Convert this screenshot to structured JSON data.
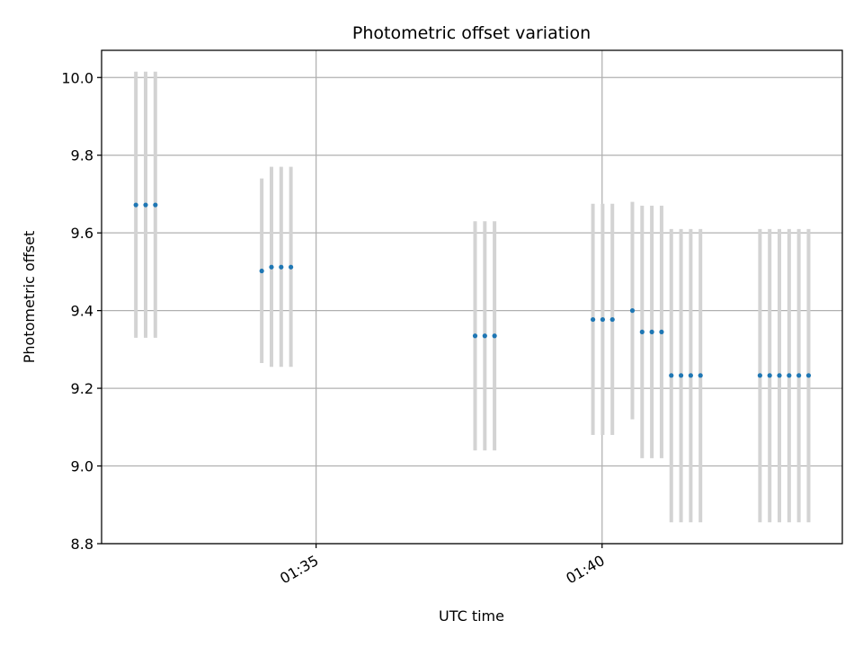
{
  "chart_data": {
    "type": "scatter",
    "title": "Photometric offset variation",
    "xlabel": "UTC time",
    "ylabel": "Photometric offset",
    "x_unit": "minutes after 01:00 UTC",
    "xlim": [
      31.25,
      44.2
    ],
    "ylim": [
      8.8,
      10.07
    ],
    "grid": true,
    "x_ticks": [
      {
        "value": 35,
        "label": "01:35"
      },
      {
        "value": 40,
        "label": "01:40"
      }
    ],
    "y_ticks": [
      {
        "value": 8.8,
        "label": "8.8"
      },
      {
        "value": 9.0,
        "label": "9.0"
      },
      {
        "value": 9.2,
        "label": "9.2"
      },
      {
        "value": 9.4,
        "label": "9.4"
      },
      {
        "value": 9.6,
        "label": "9.6"
      },
      {
        "value": 9.8,
        "label": "9.8"
      },
      {
        "value": 10.0,
        "label": "10.0"
      }
    ],
    "marker_color": "#1f77b4",
    "errorbar_color": "#d3d3d3",
    "points": [
      {
        "x": 31.85,
        "y": 9.672,
        "low": 9.33,
        "high": 10.015
      },
      {
        "x": 32.02,
        "y": 9.672,
        "low": 9.33,
        "high": 10.015
      },
      {
        "x": 32.19,
        "y": 9.672,
        "low": 9.33,
        "high": 10.015
      },
      {
        "x": 34.05,
        "y": 9.502,
        "low": 9.265,
        "high": 9.74
      },
      {
        "x": 34.22,
        "y": 9.512,
        "low": 9.255,
        "high": 9.77
      },
      {
        "x": 34.39,
        "y": 9.512,
        "low": 9.255,
        "high": 9.77
      },
      {
        "x": 34.56,
        "y": 9.512,
        "low": 9.255,
        "high": 9.77
      },
      {
        "x": 37.78,
        "y": 9.335,
        "low": 9.04,
        "high": 9.63
      },
      {
        "x": 37.95,
        "y": 9.335,
        "low": 9.04,
        "high": 9.63
      },
      {
        "x": 38.12,
        "y": 9.335,
        "low": 9.04,
        "high": 9.63
      },
      {
        "x": 39.84,
        "y": 9.377,
        "low": 9.08,
        "high": 9.675
      },
      {
        "x": 40.01,
        "y": 9.377,
        "low": 9.08,
        "high": 9.675
      },
      {
        "x": 40.18,
        "y": 9.377,
        "low": 9.08,
        "high": 9.675
      },
      {
        "x": 40.53,
        "y": 9.4,
        "low": 9.12,
        "high": 9.68
      },
      {
        "x": 40.7,
        "y": 9.345,
        "low": 9.02,
        "high": 9.67
      },
      {
        "x": 40.87,
        "y": 9.345,
        "low": 9.02,
        "high": 9.67
      },
      {
        "x": 41.04,
        "y": 9.345,
        "low": 9.02,
        "high": 9.67
      },
      {
        "x": 41.21,
        "y": 9.233,
        "low": 8.855,
        "high": 9.61
      },
      {
        "x": 41.38,
        "y": 9.233,
        "low": 8.855,
        "high": 9.61
      },
      {
        "x": 41.55,
        "y": 9.233,
        "low": 8.855,
        "high": 9.61
      },
      {
        "x": 41.72,
        "y": 9.233,
        "low": 8.855,
        "high": 9.61
      },
      {
        "x": 42.76,
        "y": 9.233,
        "low": 8.855,
        "high": 9.61
      },
      {
        "x": 42.93,
        "y": 9.233,
        "low": 8.855,
        "high": 9.61
      },
      {
        "x": 43.1,
        "y": 9.233,
        "low": 8.855,
        "high": 9.61
      },
      {
        "x": 43.27,
        "y": 9.233,
        "low": 8.855,
        "high": 9.61
      },
      {
        "x": 43.44,
        "y": 9.233,
        "low": 8.855,
        "high": 9.61
      },
      {
        "x": 43.61,
        "y": 9.233,
        "low": 8.855,
        "high": 9.61
      }
    ]
  }
}
